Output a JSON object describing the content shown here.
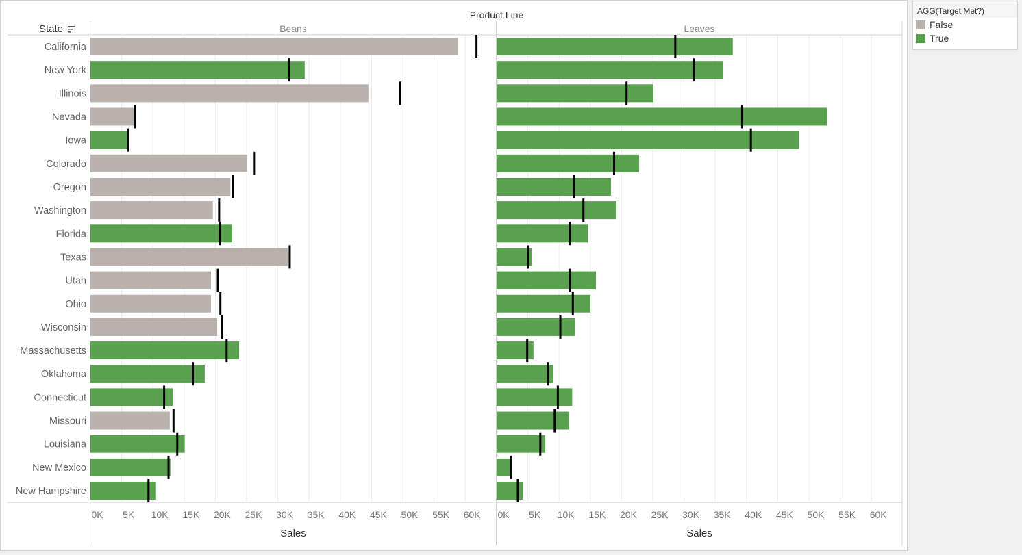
{
  "chart_data": {
    "type": "bar",
    "subtype": "bullet",
    "title": "Product Line",
    "row_header": "State",
    "xlabel": "Sales",
    "xlim": [
      0,
      65000
    ],
    "x_ticks": [
      "0K",
      "5K",
      "10K",
      "15K",
      "20K",
      "25K",
      "30K",
      "35K",
      "40K",
      "45K",
      "50K",
      "55K",
      "60K"
    ],
    "x_tick_values": [
      0,
      5000,
      10000,
      15000,
      20000,
      25000,
      30000,
      35000,
      40000,
      45000,
      50000,
      55000,
      60000
    ],
    "grid": "vertical",
    "legend_position": "right",
    "legend": {
      "title": "AGG(Target Met?)",
      "entries": [
        {
          "label": "False",
          "color": "#bab0ac"
        },
        {
          "label": "True",
          "color": "#59a14f"
        }
      ]
    },
    "target_color": "#000000",
    "categories": [
      "California",
      "New York",
      "Illinois",
      "Nevada",
      "Iowa",
      "Colorado",
      "Oregon",
      "Washington",
      "Florida",
      "Texas",
      "Utah",
      "Ohio",
      "Wisconsin",
      "Massachusetts",
      "Oklahoma",
      "Connecticut",
      "Missouri",
      "Louisiana",
      "New Mexico",
      "New Hampshire"
    ],
    "panels": [
      {
        "name": "Beans",
        "sales": [
          58900,
          34300,
          44500,
          7000,
          6000,
          25100,
          22400,
          19600,
          22700,
          31600,
          19300,
          19300,
          20300,
          23800,
          18300,
          13200,
          12700,
          15100,
          12800,
          10500
        ],
        "target": [
          61800,
          31800,
          49600,
          7100,
          6000,
          26300,
          22800,
          20600,
          20700,
          31900,
          20400,
          20800,
          21100,
          21800,
          16400,
          11800,
          13300,
          13900,
          12500,
          9300
        ],
        "target_met": [
          false,
          true,
          false,
          false,
          true,
          false,
          false,
          false,
          true,
          false,
          false,
          false,
          false,
          true,
          true,
          true,
          false,
          true,
          true,
          true
        ]
      },
      {
        "name": "Leaves",
        "sales": [
          37800,
          36300,
          25100,
          52900,
          48400,
          22800,
          18300,
          19200,
          14600,
          5600,
          15900,
          15000,
          12600,
          5900,
          9000,
          12100,
          11600,
          7800,
          2500,
          4200
        ],
        "target": [
          28600,
          31600,
          20800,
          39300,
          40700,
          18800,
          12400,
          13900,
          11700,
          5000,
          11700,
          12200,
          10200,
          4900,
          8200,
          9800,
          9300,
          7000,
          2300,
          3400
        ],
        "target_met": [
          true,
          true,
          true,
          true,
          true,
          true,
          true,
          true,
          true,
          true,
          true,
          true,
          true,
          true,
          true,
          true,
          true,
          true,
          true,
          true
        ]
      }
    ]
  }
}
